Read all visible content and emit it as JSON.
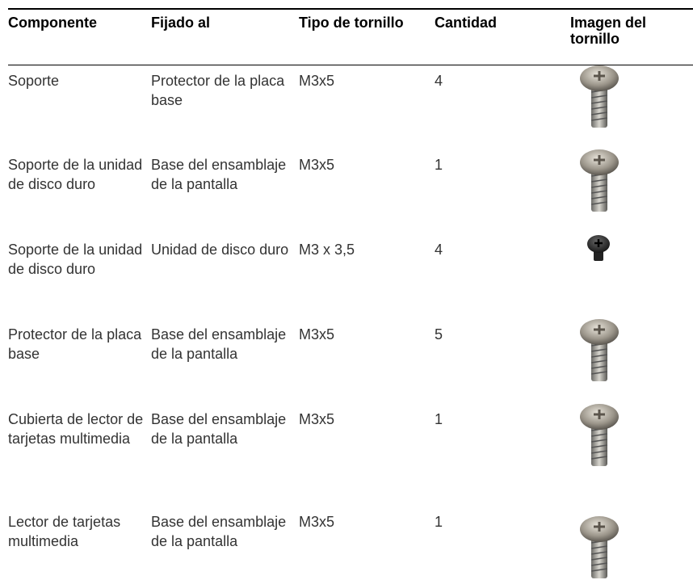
{
  "table": {
    "header": [
      "Componente",
      "Fijado al",
      "Tipo de tornillo",
      "Cantidad",
      "Imagen del tornillo"
    ],
    "rows": [
      [
        "Soporte",
        "Protector de la placa base",
        "M3x5",
        "4"
      ],
      [
        "Soporte de la unidad de disco duro",
        "Base del ensamblaje de la pantalla",
        "M3x5",
        "1"
      ],
      [
        "Soporte de la unidad de disco duro",
        "Unidad de disco duro",
        "M3 x 3,5",
        "4"
      ],
      [
        "Protector de la placa base",
        "Base del ensamblaje de la pantalla",
        "M3x5",
        "5"
      ],
      [
        "Cubierta de lector de tarjetas multimedia",
        "Base del ensamblaje de la pantalla",
        "M3x5",
        "1"
      ],
      [
        "Lector de tarjetas multimedia",
        "Base del ensamblaje de la pantalla",
        "M3x5",
        "1"
      ]
    ]
  }
}
